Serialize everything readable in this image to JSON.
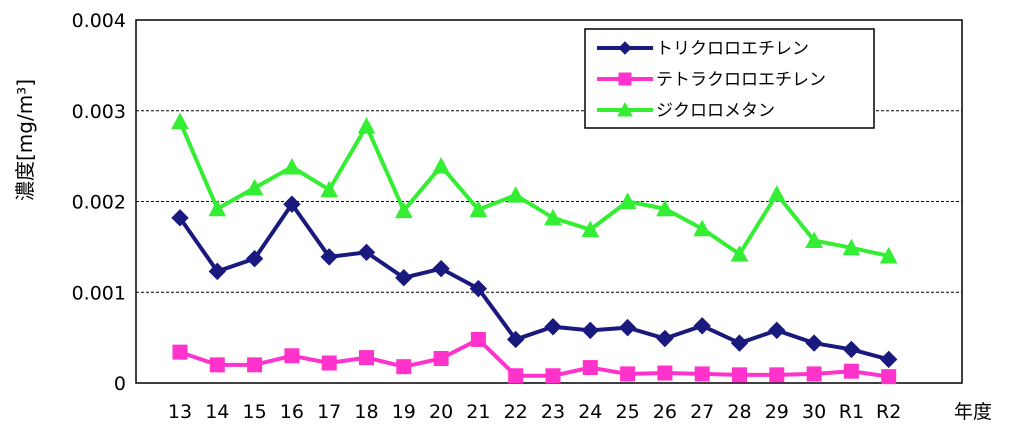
{
  "chart_data": {
    "type": "line",
    "xlabel": "年度",
    "ylabel": "濃度[mg/m³]",
    "ylim": [
      0,
      0.004
    ],
    "yticks": [
      0,
      0.001,
      0.002,
      0.003,
      0.004
    ],
    "ytick_labels": [
      "0",
      "0.001",
      "0.002",
      "0.003",
      "0.004"
    ],
    "grid": "horizontal dashed",
    "legend_position": "top-right",
    "categories": [
      "13",
      "14",
      "15",
      "16",
      "17",
      "18",
      "19",
      "20",
      "21",
      "22",
      "23",
      "24",
      "25",
      "26",
      "27",
      "28",
      "29",
      "30",
      "R1",
      "R2"
    ],
    "series": [
      {
        "name": "トリクロロエチレン",
        "color": "#1a1a7e",
        "marker": "diamond",
        "values": [
          0.00182,
          0.00123,
          0.00137,
          0.00197,
          0.00139,
          0.00144,
          0.00116,
          0.00126,
          0.00104,
          0.00048,
          0.00062,
          0.00058,
          0.00061,
          0.00049,
          0.00063,
          0.00044,
          0.00058,
          0.00044,
          0.00037,
          0.00026
        ]
      },
      {
        "name": "テトラクロロエチレン",
        "color": "#ff33cc",
        "marker": "square",
        "values": [
          0.00034,
          0.0002,
          0.0002,
          0.0003,
          0.00022,
          0.00028,
          0.00018,
          0.00027,
          0.00048,
          8e-05,
          8e-05,
          0.00017,
          0.0001,
          0.00011,
          0.0001,
          9e-05,
          9e-05,
          0.0001,
          0.00013,
          7e-05
        ]
      },
      {
        "name": "ジクロロメタン",
        "color": "#33ee33",
        "marker": "triangle",
        "values": [
          0.00288,
          0.00192,
          0.00215,
          0.00238,
          0.00213,
          0.00283,
          0.0019,
          0.00239,
          0.00191,
          0.00207,
          0.00182,
          0.00169,
          0.002,
          0.00192,
          0.0017,
          0.00142,
          0.00208,
          0.00157,
          0.00149,
          0.0014
        ]
      }
    ]
  }
}
